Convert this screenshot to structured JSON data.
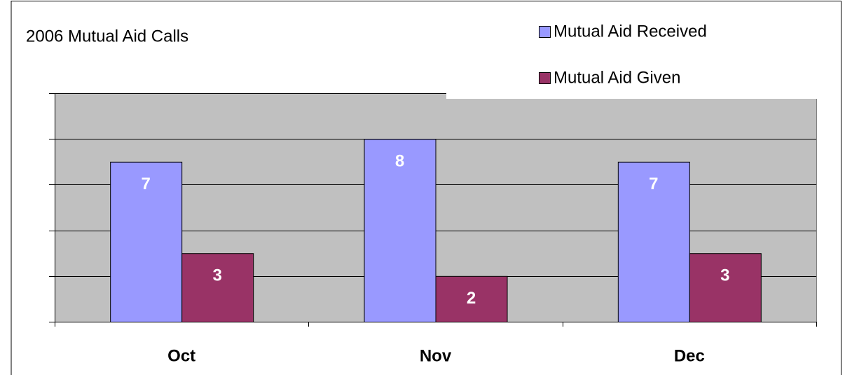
{
  "chart_data": {
    "type": "bar",
    "title": "2006 Mutual Aid Calls",
    "categories": [
      "Oct",
      "Nov",
      "Dec"
    ],
    "series": [
      {
        "name": "Mutual Aid Received",
        "color": "#9999ff",
        "values": [
          7,
          8,
          7
        ]
      },
      {
        "name": "Mutual Aid Given",
        "color": "#993366",
        "values": [
          3,
          2,
          3
        ]
      }
    ],
    "ylim": [
      0,
      10
    ],
    "yticks": [
      0,
      2,
      4,
      6,
      8,
      10
    ],
    "grid": true,
    "legend": "top-right"
  }
}
